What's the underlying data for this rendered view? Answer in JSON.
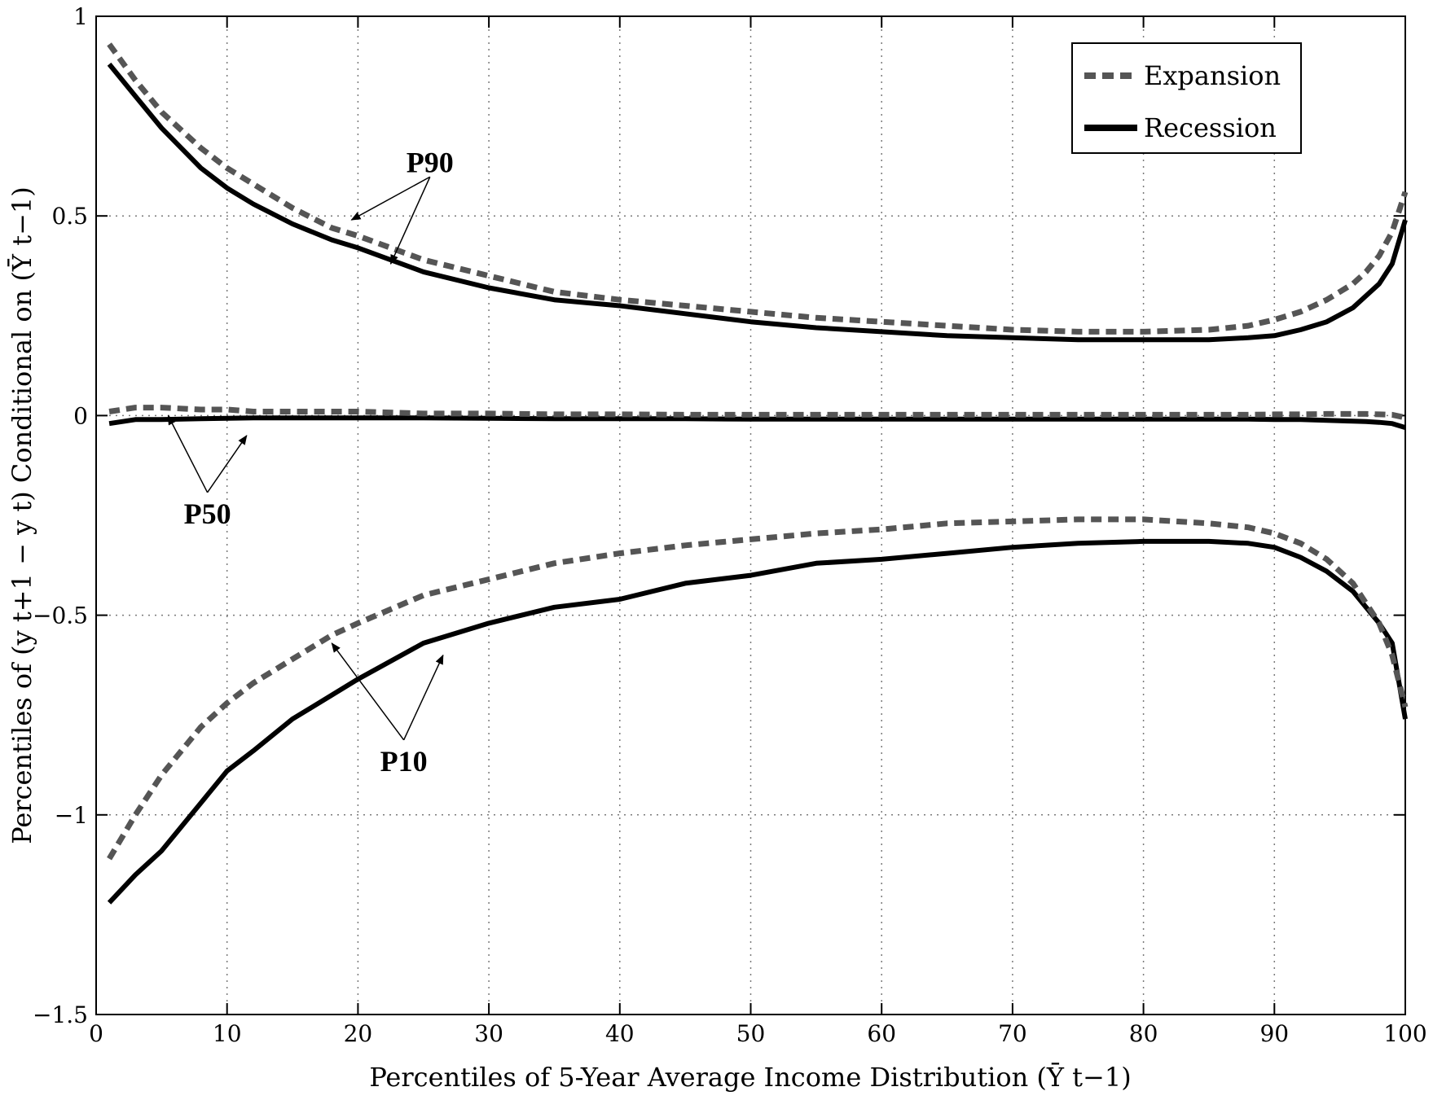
{
  "chart_data": {
    "type": "line",
    "xlabel": "Percentiles of 5-Year Average Income Distribution (Ȳ t−1)",
    "ylabel": "Percentiles of (y t+1 − y t) Conditional on (Ȳ t−1)",
    "xlim": [
      0,
      100
    ],
    "ylim": [
      -1.5,
      1
    ],
    "xticks": [
      0,
      10,
      20,
      30,
      40,
      50,
      60,
      70,
      80,
      90,
      100
    ],
    "yticks": [
      1,
      0.5,
      0,
      -0.5,
      -1,
      -1.5
    ],
    "ytick_labels": [
      "1",
      "0.5",
      "0",
      "−0.5",
      "−1",
      "−1.5"
    ],
    "grid": true,
    "legend_position": "top-right",
    "legend": [
      {
        "name": "Expansion",
        "style": "dashed",
        "color": "#555555"
      },
      {
        "name": "Recession",
        "style": "solid",
        "color": "#000000"
      }
    ],
    "x": [
      1,
      3,
      5,
      8,
      10,
      12,
      15,
      18,
      20,
      25,
      30,
      35,
      40,
      45,
      50,
      55,
      60,
      65,
      70,
      75,
      80,
      85,
      88,
      90,
      92,
      94,
      96,
      97,
      98,
      99,
      100
    ],
    "series": [
      {
        "name": "Expansion P90",
        "group": "Expansion",
        "values": [
          0.93,
          0.84,
          0.76,
          0.67,
          0.62,
          0.58,
          0.52,
          0.47,
          0.45,
          0.39,
          0.35,
          0.31,
          0.29,
          0.275,
          0.26,
          0.245,
          0.235,
          0.225,
          0.215,
          0.21,
          0.21,
          0.215,
          0.225,
          0.24,
          0.26,
          0.29,
          0.33,
          0.36,
          0.4,
          0.46,
          0.56
        ]
      },
      {
        "name": "Recession P90",
        "group": "Recession",
        "values": [
          0.88,
          0.8,
          0.72,
          0.62,
          0.57,
          0.53,
          0.48,
          0.44,
          0.42,
          0.36,
          0.32,
          0.29,
          0.275,
          0.255,
          0.235,
          0.22,
          0.21,
          0.2,
          0.195,
          0.19,
          0.19,
          0.19,
          0.195,
          0.2,
          0.215,
          0.235,
          0.27,
          0.3,
          0.33,
          0.38,
          0.49
        ]
      },
      {
        "name": "Expansion P50",
        "group": "Expansion",
        "values": [
          0.01,
          0.02,
          0.02,
          0.015,
          0.015,
          0.01,
          0.01,
          0.01,
          0.01,
          0.005,
          0.005,
          0.003,
          0.003,
          0.002,
          0.002,
          0.002,
          0.002,
          0.002,
          0.002,
          0.002,
          0.002,
          0.002,
          0.002,
          0.003,
          0.003,
          0.004,
          0.004,
          0.004,
          0.003,
          0.002,
          -0.005
        ]
      },
      {
        "name": "Recession P50",
        "group": "Recession",
        "values": [
          -0.02,
          -0.01,
          -0.01,
          -0.008,
          -0.007,
          -0.006,
          -0.006,
          -0.006,
          -0.006,
          -0.006,
          -0.007,
          -0.008,
          -0.008,
          -0.008,
          -0.009,
          -0.009,
          -0.009,
          -0.009,
          -0.009,
          -0.009,
          -0.009,
          -0.009,
          -0.009,
          -0.01,
          -0.01,
          -0.012,
          -0.014,
          -0.015,
          -0.017,
          -0.02,
          -0.03
        ]
      },
      {
        "name": "Expansion P10",
        "group": "Expansion",
        "values": [
          -1.11,
          -1.0,
          -0.9,
          -0.78,
          -0.72,
          -0.67,
          -0.61,
          -0.55,
          -0.52,
          -0.45,
          -0.41,
          -0.37,
          -0.345,
          -0.325,
          -0.31,
          -0.295,
          -0.285,
          -0.27,
          -0.265,
          -0.26,
          -0.26,
          -0.27,
          -0.28,
          -0.295,
          -0.32,
          -0.36,
          -0.42,
          -0.47,
          -0.52,
          -0.6,
          -0.73
        ]
      },
      {
        "name": "Recession P10",
        "group": "Recession",
        "values": [
          -1.22,
          -1.15,
          -1.09,
          -0.97,
          -0.89,
          -0.84,
          -0.76,
          -0.7,
          -0.66,
          -0.57,
          -0.52,
          -0.48,
          -0.46,
          -0.42,
          -0.4,
          -0.37,
          -0.36,
          -0.345,
          -0.33,
          -0.32,
          -0.315,
          -0.315,
          -0.32,
          -0.33,
          -0.355,
          -0.39,
          -0.44,
          -0.48,
          -0.52,
          -0.57,
          -0.76
        ]
      }
    ],
    "annotations": [
      {
        "text": "P90",
        "label_at": [
          25.5,
          0.61
        ],
        "arrows_to": [
          [
            19.5,
            0.49
          ],
          [
            22.5,
            0.38
          ]
        ]
      },
      {
        "text": "P50",
        "label_at": [
          8.5,
          -0.27
        ],
        "arrows_to": [
          [
            5.5,
            0.0
          ],
          [
            11.5,
            -0.05
          ]
        ]
      },
      {
        "text": "P10",
        "label_at": [
          23.5,
          -0.89
        ],
        "arrows_to": [
          [
            18,
            -0.57
          ],
          [
            26.5,
            -0.6
          ]
        ]
      }
    ]
  }
}
